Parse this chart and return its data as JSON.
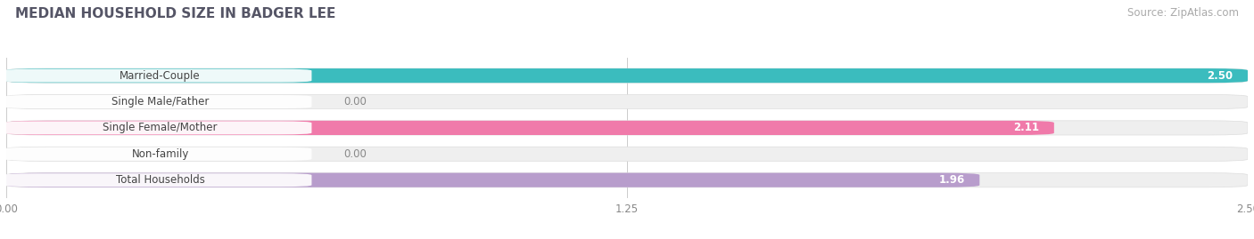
{
  "title": "MEDIAN HOUSEHOLD SIZE IN BADGER LEE",
  "source": "Source: ZipAtlas.com",
  "categories": [
    "Married-Couple",
    "Single Male/Father",
    "Single Female/Mother",
    "Non-family",
    "Total Households"
  ],
  "values": [
    2.5,
    0.0,
    2.11,
    0.0,
    1.96
  ],
  "bar_colors": [
    "#3bbcbe",
    "#a0b4e8",
    "#f07aaa",
    "#f5c99a",
    "#b89dcc"
  ],
  "xlim": [
    0,
    2.5
  ],
  "xticks": [
    0.0,
    1.25,
    2.5
  ],
  "xtick_labels": [
    "0.00",
    "1.25",
    "2.50"
  ],
  "title_fontsize": 11,
  "source_fontsize": 8.5,
  "label_fontsize": 8.5,
  "value_fontsize": 8.5,
  "background_color": "#ffffff",
  "panel_bg_color": "#f5f5f5",
  "bar_height": 0.55,
  "bar_gap": 0.12
}
